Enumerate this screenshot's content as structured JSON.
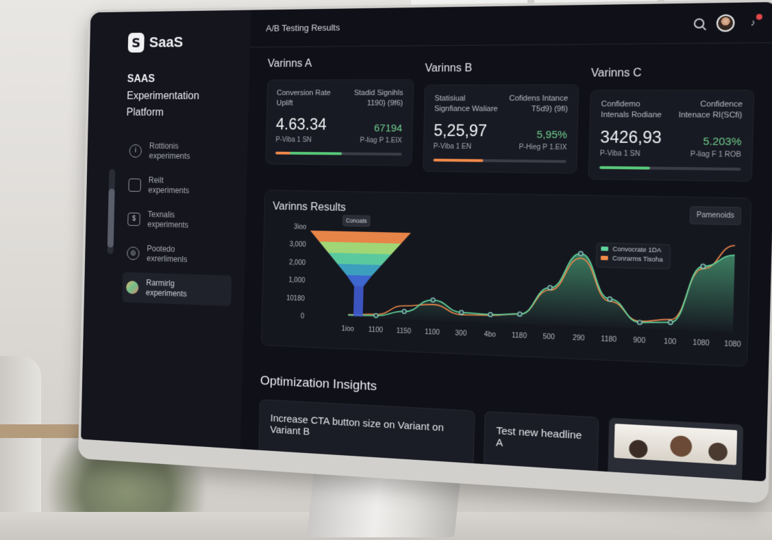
{
  "brand": {
    "logo_letter": "S",
    "logo_text": "SaaS",
    "title_line1": "SAAS",
    "title_line2": "Experimentation Platform"
  },
  "sidebar": {
    "items": [
      {
        "label_line1": "Rottionis",
        "label_line2": "experiments",
        "icon": "info-circle-icon"
      },
      {
        "label_line1": "Reilt",
        "label_line2": "experiments",
        "icon": "folder-icon"
      },
      {
        "label_line1": "Texnalis",
        "label_line2": "experiments",
        "icon": "dollar-square-icon"
      },
      {
        "label_line1": "Pootedo",
        "label_line2": "exrerlimenls",
        "icon": "target-circle-icon"
      },
      {
        "label_line1": "Rarmirlg",
        "label_line2": "experiments",
        "icon": "multicolor-icon"
      }
    ],
    "active_index": 4
  },
  "topbar": {
    "title": "A/B Testing Results"
  },
  "variants": [
    {
      "name": "Varinns A",
      "label_left": "Conversion Rate Uplift",
      "label_right": "Stadid Signihls 1190) (9f6)",
      "big_value": "4.63.34",
      "green_value": "67194",
      "foot_left": "P-Viba 1 SN",
      "foot_right": "P-liag P 1.EIX",
      "bar_color": "#f28a4a",
      "bar_color2": "#59c97a",
      "bar_split": 0.53,
      "bar_fill": 0.53
    },
    {
      "name": "Varinns B",
      "label_left": "Statisiual Signfiance Waliare",
      "label_right": "Cofidens Intance T5d9) (9fi)",
      "big_value": "5,25,97",
      "green_value": "5,95%",
      "foot_left": "P-Viba 1 EN",
      "foot_right": "P-Hieg P 1.EIX",
      "bar_color": "#f28a4a",
      "bar_color2": "#f28a4a",
      "bar_split": 0.38,
      "bar_fill": 0.38
    },
    {
      "name": "Varinns C",
      "label_left": "Confidemo Intenals Rodiane",
      "label_right": "Confidence Intenace RI(SCfi)",
      "big_value": "3426,93",
      "green_value": "5.203%",
      "foot_left": "P-Viba 1 SN",
      "foot_right": "P-liag F 1 ROB",
      "bar_color": "#59c97a",
      "bar_color2": "#59c97a",
      "bar_split": 0.36,
      "bar_fill": 0.36
    }
  ],
  "results": {
    "title": "Varinns Results",
    "button_label": "Pamenoids",
    "tooltip_label": "Conoats"
  },
  "chart_data": {
    "type": "area",
    "y_tick_labels": [
      "3ioo",
      "3,000",
      "2,000",
      "1,000",
      "10180",
      "0"
    ],
    "x_tick_labels": [
      "1ioo",
      "1100",
      "1150",
      "1100",
      "300",
      "4bo",
      "1180",
      "500",
      "290",
      "1180",
      "900",
      "100",
      "1080",
      "1080"
    ],
    "y_range": [
      0,
      4000
    ],
    "series": [
      {
        "name": "Convocrate 1DA",
        "color": "#5fd39a",
        "values": [
          100,
          120,
          350,
          900,
          400,
          350,
          420,
          1600,
          3100,
          1200,
          250,
          300,
          2700,
          3200
        ]
      },
      {
        "name": "Conrarms Tisoha",
        "color": "#f28a4a",
        "values": [
          120,
          180,
          600,
          700,
          300,
          320,
          420,
          1500,
          2900,
          1100,
          300,
          420,
          2600,
          3600
        ]
      }
    ],
    "funnel_colors": [
      "#f28a4a",
      "#a8e07a",
      "#5fd3a5",
      "#3fa6c7",
      "#3f6ad8"
    ]
  },
  "insights": {
    "title": "Optimization Insights",
    "card1": "Increase CTA button size on Variant on Variant B",
    "card2": "Test new headline A"
  },
  "colors": {
    "screen_bg": "#101118",
    "accent_green": "#6fd08d",
    "accent_orange": "#f28a4a"
  }
}
